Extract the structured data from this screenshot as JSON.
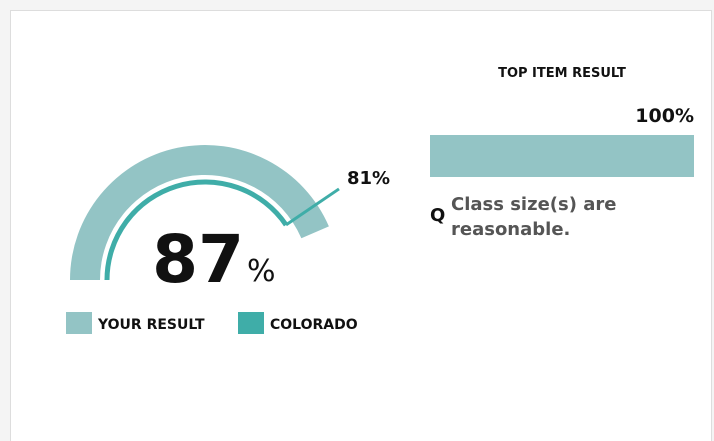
{
  "chart_data": [
    {
      "type": "gauge",
      "ylim": [
        0,
        100
      ],
      "unit": "%",
      "series": [
        {
          "name": "YOUR RESULT",
          "color": "#93c4c5",
          "values": [
            87
          ],
          "value_labels": [
            "87"
          ]
        },
        {
          "name": "COLORADO",
          "color": "#3fada8",
          "values": [
            81
          ],
          "value_labels": [
            "81%"
          ]
        }
      ]
    },
    {
      "type": "bar",
      "title": "TOP ITEM RESULT",
      "xlim": [
        0,
        100
      ],
      "color": "#93c4c5",
      "values": [
        100
      ],
      "value_labels": [
        "100%"
      ],
      "question_marker": "Q",
      "categories": [
        "Class size(s) are reasonable."
      ]
    }
  ]
}
